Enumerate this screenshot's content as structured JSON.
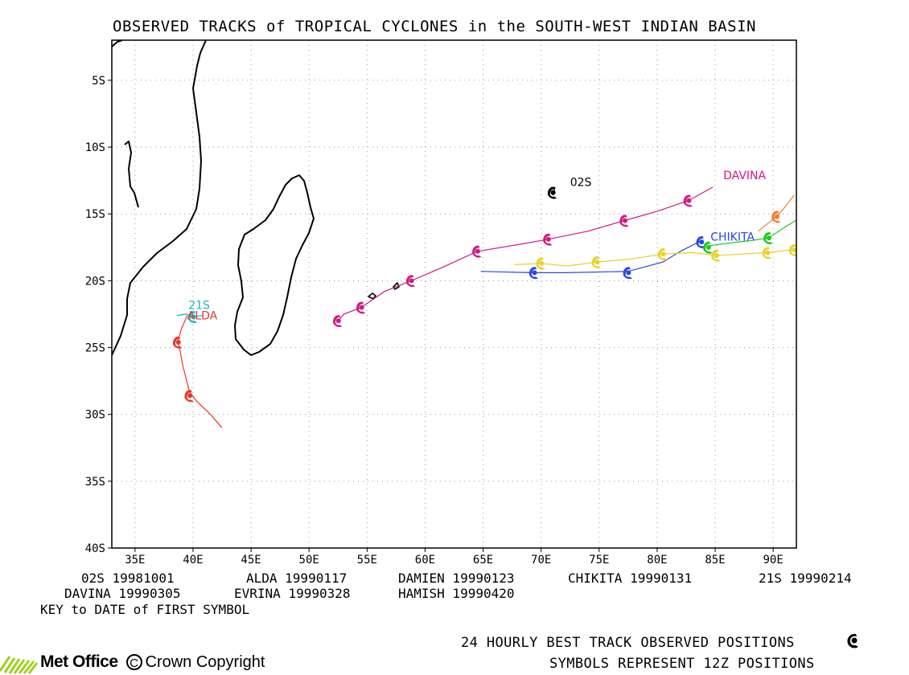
{
  "title": "OBSERVED TRACKS of TROPICAL CYCLONES in the SOUTH-WEST INDIAN BASIN",
  "colors": {
    "coast": "#000000",
    "grid": "#9a9a9a",
    "02S": "#000000",
    "ALDA": "#e8362e",
    "DAMIEN": "#f07c2a",
    "CHIKITA": "#2648e0",
    "21S": "#1ab8c8",
    "DAVINA": "#d11a82",
    "EVRINA": "#e8d22a",
    "HAMISH": "#1ec81e"
  },
  "chart_data": {
    "type": "map",
    "lon_range": [
      33,
      92
    ],
    "lat_range": [
      -40,
      -2
    ],
    "x_ticks": [
      "35E",
      "40E",
      "45E",
      "50E",
      "55E",
      "60E",
      "65E",
      "70E",
      "75E",
      "80E",
      "85E",
      "90E"
    ],
    "y_ticks": [
      "5S",
      "10S",
      "15S",
      "20S",
      "25S",
      "30S",
      "35S",
      "40S"
    ],
    "tracks": [
      {
        "name": "02S",
        "label": "02S",
        "label_pos": [
          72.5,
          -12.6
        ],
        "color_key": "02S",
        "path": [
          [
            71.2,
            -13.0
          ],
          [
            71.0,
            -13.6
          ]
        ],
        "symbols": [
          [
            71.0,
            -13.4
          ]
        ]
      },
      {
        "name": "ALDA",
        "label": "ALDA",
        "label_pos": [
          39.5,
          -22.6
        ],
        "color_key": "ALDA",
        "path": [
          [
            42.5,
            -31.0
          ],
          [
            41.5,
            -30.0
          ],
          [
            40.3,
            -29.0
          ],
          [
            39.7,
            -28.3
          ],
          [
            39.4,
            -27.3
          ],
          [
            39.1,
            -26.3
          ],
          [
            38.9,
            -25.3
          ],
          [
            38.7,
            -24.5
          ],
          [
            39.0,
            -23.6
          ],
          [
            39.5,
            -22.6
          ]
        ],
        "symbols": [
          [
            39.7,
            -28.6
          ],
          [
            38.7,
            -24.6
          ]
        ]
      },
      {
        "name": "21S",
        "label": "21S",
        "label_pos": [
          39.6,
          -21.8
        ],
        "color_key": "21S",
        "path": [
          [
            38.6,
            -22.6
          ],
          [
            39.4,
            -22.5
          ],
          [
            40.0,
            -22.7
          ],
          [
            40.8,
            -22.6
          ]
        ],
        "symbols": [
          [
            40.0,
            -22.7
          ]
        ]
      },
      {
        "name": "DAVINA",
        "label": "DAVINA",
        "label_pos": [
          85.7,
          -12.1
        ],
        "color_key": "DAVINA",
        "path": [
          [
            52.5,
            -23.0
          ],
          [
            53.0,
            -22.5
          ],
          [
            54.5,
            -22.0
          ],
          [
            56.5,
            -20.8
          ],
          [
            58.8,
            -20.0
          ],
          [
            61.5,
            -19.0
          ],
          [
            64.5,
            -17.8
          ],
          [
            68.0,
            -17.3
          ],
          [
            70.6,
            -16.9
          ],
          [
            74.0,
            -16.3
          ],
          [
            77.2,
            -15.5
          ],
          [
            80.0,
            -14.8
          ],
          [
            82.7,
            -14.0
          ],
          [
            84.8,
            -13.0
          ]
        ],
        "symbols": [
          [
            52.5,
            -23.0
          ],
          [
            54.5,
            -22.0
          ],
          [
            58.8,
            -20.0
          ],
          [
            64.5,
            -17.8
          ],
          [
            70.6,
            -16.9
          ],
          [
            77.2,
            -15.5
          ],
          [
            82.7,
            -14.0
          ]
        ]
      },
      {
        "name": "CHIKITA",
        "label": "CHIKITA",
        "label_pos": [
          84.6,
          -16.7
        ],
        "color_key": "CHIKITA",
        "path": [
          [
            64.8,
            -19.3
          ],
          [
            69.4,
            -19.4
          ],
          [
            72.0,
            -19.4
          ],
          [
            77.5,
            -19.3
          ],
          [
            80.5,
            -18.6
          ],
          [
            82.0,
            -17.8
          ],
          [
            83.8,
            -17.0
          ]
        ],
        "symbols": [
          [
            69.4,
            -19.4
          ],
          [
            77.5,
            -19.4
          ],
          [
            83.8,
            -17.1
          ]
        ]
      },
      {
        "name": "EVRINA",
        "label": "",
        "label_pos": null,
        "color_key": "EVRINA",
        "path": [
          [
            67.7,
            -18.8
          ],
          [
            70.0,
            -18.7
          ],
          [
            72.2,
            -18.9
          ],
          [
            74.8,
            -18.6
          ],
          [
            77.5,
            -18.4
          ],
          [
            80.5,
            -18.0
          ],
          [
            83.0,
            -17.9
          ],
          [
            85.1,
            -18.1
          ],
          [
            87.5,
            -18.0
          ],
          [
            89.5,
            -17.9
          ],
          [
            91.5,
            -17.7
          ],
          [
            96.0,
            -17.3
          ],
          [
            99.0,
            -16.6
          ]
        ],
        "symbols": [
          [
            70.0,
            -18.7
          ],
          [
            74.8,
            -18.6
          ],
          [
            80.5,
            -18.0
          ],
          [
            85.1,
            -18.1
          ],
          [
            89.5,
            -17.9
          ],
          [
            91.8,
            -17.7
          ]
        ]
      },
      {
        "name": "HAMISH",
        "label": "",
        "label_pos": null,
        "color_key": "HAMISH",
        "path": [
          [
            84.4,
            -17.4
          ],
          [
            86.0,
            -17.2
          ],
          [
            88.0,
            -17.0
          ],
          [
            89.6,
            -16.8
          ],
          [
            91.0,
            -16.0
          ],
          [
            94.0,
            -14.4
          ],
          [
            95.5,
            -15.5
          ],
          [
            97.0,
            -15.9
          ],
          [
            98.5,
            -15.6
          ],
          [
            100.0,
            -15.0
          ]
        ],
        "symbols": [
          [
            84.4,
            -17.5
          ],
          [
            89.6,
            -16.8
          ]
        ]
      },
      {
        "name": "DAMIEN",
        "label": "",
        "label_pos": null,
        "color_key": "DAMIEN",
        "path": [
          [
            88.7,
            -16.3
          ],
          [
            90.3,
            -15.2
          ],
          [
            91.0,
            -14.5
          ],
          [
            91.8,
            -13.6
          ]
        ],
        "symbols": [
          [
            90.3,
            -15.2
          ]
        ]
      }
    ]
  },
  "key": {
    "row1": [
      "02S 19981001",
      "ALDA 19990117",
      "DAMIEN 19990123",
      "CHIKITA 19990131",
      "21S 19990214"
    ],
    "row2": [
      "DAVINA 19990305",
      "EVRINA 19990328",
      "HAMISH 19990420"
    ],
    "caption": "KEY to DATE of FIRST SYMBOL"
  },
  "footer": {
    "line1": "24 HOURLY BEST TRACK OBSERVED POSITIONS",
    "line2": "SYMBOLS REPRESENT 12Z POSITIONS",
    "logo": "Met Office",
    "copyright_symbol": "C",
    "copyright": "Crown Copyright"
  }
}
